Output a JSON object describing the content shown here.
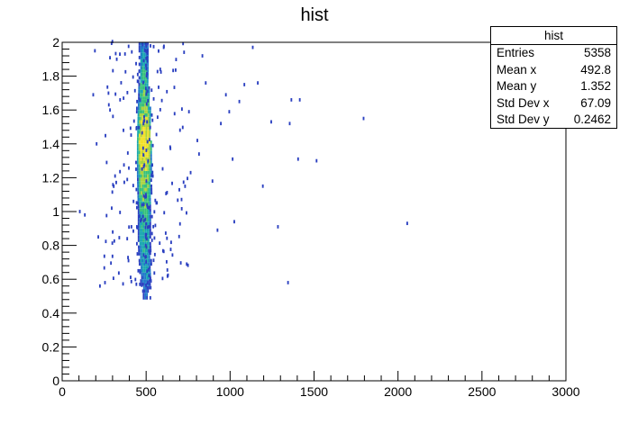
{
  "chart_data": {
    "type": "heatmap",
    "title": "hist",
    "xlabel": "",
    "ylabel": "",
    "xlim": [
      0,
      3000
    ],
    "ylim": [
      0,
      2
    ],
    "x_ticks": [
      0,
      500,
      1000,
      1500,
      2000,
      2500,
      3000
    ],
    "y_ticks": [
      0,
      0.2,
      0.4,
      0.6,
      0.8,
      1,
      1.2,
      1.4,
      1.6,
      1.8,
      2
    ],
    "bins": {
      "x_width": 10,
      "y_height": 0.02
    },
    "palette": [
      "#3a0f9a",
      "#2a3fc0",
      "#1f77c9",
      "#19a6b0",
      "#37c07a",
      "#a9d23e",
      "#f2e028"
    ],
    "core_profile": [
      {
        "y": 0.5,
        "x_range": [
          480,
          510
        ],
        "count": 1
      },
      {
        "y": 0.6,
        "x_range": [
          460,
          530
        ],
        "count": 2
      },
      {
        "y": 0.8,
        "x_range": [
          450,
          520
        ],
        "count": 4
      },
      {
        "y": 1.0,
        "x_range": [
          450,
          520
        ],
        "count": 6
      },
      {
        "y": 1.2,
        "x_range": [
          445,
          525
        ],
        "count": 10
      },
      {
        "y": 1.4,
        "x_range": [
          445,
          525
        ],
        "count": 22
      },
      {
        "y": 1.6,
        "x_range": [
          450,
          520
        ],
        "count": 9
      },
      {
        "y": 1.8,
        "x_range": [
          455,
          510
        ],
        "count": 4
      },
      {
        "y": 2.0,
        "x_range": [
          455,
          510
        ],
        "count": 2
      }
    ],
    "outliers": [
      [
        100,
        0.99
      ],
      [
        130,
        0.97
      ],
      [
        180,
        1.68
      ],
      [
        190,
        1.94
      ],
      [
        200,
        1.39
      ],
      [
        210,
        0.84
      ],
      [
        220,
        0.55
      ],
      [
        250,
        0.57
      ],
      [
        260,
        1.28
      ],
      [
        280,
        1.59
      ],
      [
        290,
        1.01
      ],
      [
        310,
        1.2
      ],
      [
        320,
        1.89
      ],
      [
        340,
        1.65
      ],
      [
        360,
        1.47
      ],
      [
        390,
        0.7
      ],
      [
        420,
        1.05
      ],
      [
        750,
        1.58
      ],
      [
        760,
        1.22
      ],
      [
        800,
        1.41
      ],
      [
        810,
        1.33
      ],
      [
        830,
        1.91
      ],
      [
        850,
        1.75
      ],
      [
        890,
        1.17
      ],
      [
        920,
        0.88
      ],
      [
        940,
        1.51
      ],
      [
        970,
        1.68
      ],
      [
        990,
        1.58
      ],
      [
        1010,
        1.3
      ],
      [
        1020,
        0.93
      ],
      [
        1050,
        1.64
      ],
      [
        1080,
        1.74
      ],
      [
        1130,
        1.96
      ],
      [
        1160,
        1.75
      ],
      [
        1190,
        1.14
      ],
      [
        1240,
        1.52
      ],
      [
        1280,
        0.9
      ],
      [
        1340,
        0.57
      ],
      [
        1350,
        1.51
      ],
      [
        1360,
        1.65
      ],
      [
        1400,
        1.3
      ],
      [
        1410,
        1.65
      ],
      [
        1510,
        1.29
      ],
      [
        1790,
        1.54
      ],
      [
        2050,
        0.92
      ]
    ]
  },
  "stats": {
    "title": "hist",
    "rows": [
      {
        "label": "Entries",
        "value": "5358"
      },
      {
        "label": "Mean x",
        "value": "492.8"
      },
      {
        "label": "Mean y",
        "value": "1.352"
      },
      {
        "label": "Std Dev x",
        "value": "67.09"
      },
      {
        "label": "Std Dev y",
        "value": "0.2462"
      }
    ]
  }
}
